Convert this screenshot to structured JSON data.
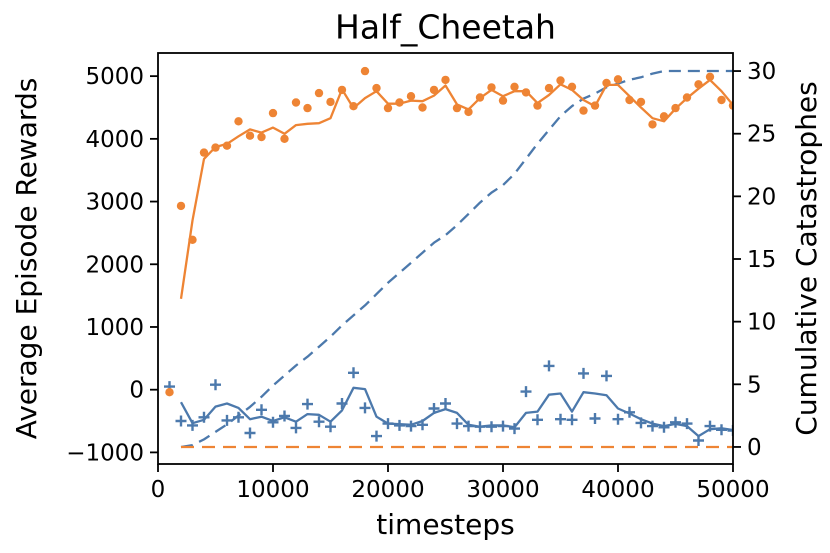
{
  "colors": {
    "orange": "#ee8434",
    "blue": "#4c79ac",
    "axis": "#000000",
    "background": "#ffffff"
  },
  "chart_data": {
    "type": "line",
    "title": "Half_Cheetah",
    "xlabel": "timesteps",
    "ylabel_left": "Average Episode Rewards",
    "ylabel_right": "Cumulative Catastrophes",
    "grid": false,
    "legend": null,
    "xlim": [
      0,
      50000
    ],
    "ylim_left": [
      -1185,
      5369
    ],
    "ylim_right": [
      -1.36,
      31.44
    ],
    "x_ticks": {
      "values": [
        0,
        10000,
        20000,
        30000,
        40000,
        50000
      ],
      "labels": [
        "0",
        "10000",
        "20000",
        "30000",
        "40000",
        "50000"
      ]
    },
    "y_ticks_left": {
      "values": [
        -1000,
        0,
        1000,
        2000,
        3000,
        4000,
        5000
      ],
      "labels": [
        "−1000",
        "0",
        "1000",
        "2000",
        "3000",
        "4000",
        "5000"
      ]
    },
    "y_ticks_right": {
      "values": [
        0,
        5,
        10,
        15,
        20,
        25,
        30
      ],
      "labels": [
        "0",
        "5",
        "10",
        "15",
        "20",
        "25",
        "30"
      ]
    },
    "series": [
      {
        "name": "blue-catastrophes-dashed",
        "type": "line",
        "axis": "right",
        "color": "blue",
        "dash": [
          12,
          7
        ],
        "x": [
          2000,
          3000,
          4000,
          5000,
          6000,
          7000,
          8000,
          9000,
          10000,
          11000,
          12000,
          13000,
          14000,
          15000,
          16000,
          17000,
          18000,
          19000,
          20000,
          21000,
          22000,
          23000,
          24000,
          25000,
          26000,
          27000,
          28000,
          29000,
          30000,
          31000,
          32000,
          33000,
          34000,
          35000,
          36000,
          37000,
          38000,
          39000,
          40000,
          41000,
          42000,
          43000,
          44000,
          45000,
          46000,
          47000,
          48000,
          49000,
          50000
        ],
        "y": [
          0,
          0.15,
          0.6,
          1.2,
          1.8,
          2.5,
          3.2,
          4.0,
          4.9,
          5.7,
          6.5,
          7.2,
          8.0,
          8.8,
          9.7,
          10.5,
          11.3,
          12.2,
          13.1,
          13.9,
          14.7,
          15.5,
          16.3,
          16.9,
          17.7,
          18.6,
          19.5,
          20.3,
          20.9,
          21.8,
          23.0,
          24.2,
          25.3,
          26.4,
          27.2,
          27.8,
          28.2,
          28.7,
          29.0,
          29.3,
          29.5,
          29.8,
          30,
          30,
          30,
          30,
          30,
          30,
          30
        ]
      },
      {
        "name": "orange-catastrophes-dashed",
        "type": "line",
        "axis": "right",
        "color": "orange",
        "dash": [
          13,
          8
        ],
        "x": [
          2000,
          50000
        ],
        "y": [
          0,
          0
        ]
      },
      {
        "name": "blue-rewards-trend",
        "type": "line",
        "axis": "left",
        "color": "blue",
        "dash": null,
        "x": [
          2000,
          3000,
          4000,
          5000,
          6000,
          7000,
          8000,
          9000,
          10000,
          11000,
          12000,
          13000,
          14000,
          15000,
          16000,
          17000,
          18000,
          19000,
          20000,
          21000,
          22000,
          23000,
          24000,
          25000,
          26000,
          27000,
          28000,
          29000,
          30000,
          31000,
          32000,
          33000,
          34000,
          35000,
          36000,
          37000,
          38000,
          39000,
          40000,
          41000,
          42000,
          43000,
          44000,
          45000,
          46000,
          47000,
          48000,
          49000,
          50000
        ],
        "y": [
          -200,
          -535,
          -480,
          -270,
          -220,
          -290,
          -470,
          -430,
          -500,
          -440,
          -510,
          -390,
          -400,
          -510,
          -330,
          30,
          10,
          -430,
          -540,
          -550,
          -560,
          -500,
          -370,
          -310,
          -370,
          -560,
          -590,
          -570,
          -570,
          -600,
          -370,
          -350,
          -80,
          -60,
          -350,
          -40,
          -60,
          -90,
          -300,
          -380,
          -470,
          -540,
          -580,
          -545,
          -580,
          -740,
          -630,
          -615,
          -645
        ]
      },
      {
        "name": "orange-rewards-trend",
        "type": "line",
        "axis": "left",
        "color": "orange",
        "dash": null,
        "x": [
          2000,
          3000,
          4000,
          5000,
          6000,
          7000,
          8000,
          9000,
          10000,
          11000,
          12000,
          13000,
          14000,
          15000,
          16000,
          17000,
          18000,
          19000,
          20000,
          21000,
          22000,
          23000,
          24000,
          25000,
          26000,
          27000,
          28000,
          29000,
          30000,
          31000,
          32000,
          33000,
          34000,
          35000,
          36000,
          37000,
          38000,
          39000,
          40000,
          41000,
          42000,
          43000,
          44000,
          45000,
          46000,
          47000,
          48000,
          49000,
          50000
        ],
        "y": [
          1450,
          2700,
          3680,
          3870,
          3920,
          4040,
          4150,
          4100,
          4180,
          4080,
          4220,
          4240,
          4250,
          4330,
          4790,
          4490,
          4650,
          4760,
          4560,
          4560,
          4610,
          4600,
          4690,
          4850,
          4550,
          4470,
          4650,
          4780,
          4680,
          4760,
          4760,
          4570,
          4700,
          4870,
          4780,
          4620,
          4520,
          4860,
          4860,
          4680,
          4500,
          4330,
          4280,
          4480,
          4650,
          4800,
          4940,
          4760,
          4540
        ]
      },
      {
        "name": "blue-rewards-scatter",
        "type": "scatter",
        "marker": "plus",
        "axis": "left",
        "color": "blue",
        "x": [
          1000,
          2000,
          3000,
          4000,
          5000,
          6000,
          7000,
          8000,
          9000,
          10000,
          11000,
          12000,
          13000,
          14000,
          15000,
          16000,
          17000,
          18000,
          19000,
          20000,
          21000,
          22000,
          23000,
          24000,
          25000,
          26000,
          27000,
          28000,
          29000,
          30000,
          31000,
          32000,
          33000,
          34000,
          35000,
          36000,
          37000,
          38000,
          39000,
          40000,
          41000,
          42000,
          43000,
          44000,
          45000,
          46000,
          47000,
          48000,
          49000,
          50000
        ],
        "y": [
          50,
          -500,
          -570,
          -440,
          80,
          -490,
          -440,
          -690,
          -320,
          -520,
          -420,
          -610,
          -230,
          -510,
          -590,
          -220,
          270,
          -290,
          -740,
          -540,
          -570,
          -580,
          -560,
          -300,
          -220,
          -540,
          -580,
          -590,
          -590,
          -580,
          -620,
          -30,
          -480,
          380,
          -470,
          -480,
          260,
          -460,
          220,
          -470,
          -360,
          -530,
          -580,
          -600,
          -520,
          -540,
          -810,
          -580,
          -640,
          -650
        ]
      },
      {
        "name": "orange-rewards-scatter",
        "type": "scatter",
        "marker": "dot",
        "axis": "left",
        "color": "orange",
        "x": [
          1000,
          2000,
          3000,
          4000,
          5000,
          6000,
          7000,
          8000,
          9000,
          10000,
          11000,
          12000,
          13000,
          14000,
          15000,
          16000,
          17000,
          18000,
          19000,
          20000,
          21000,
          22000,
          23000,
          24000,
          25000,
          26000,
          27000,
          28000,
          29000,
          30000,
          31000,
          32000,
          33000,
          34000,
          35000,
          36000,
          37000,
          38000,
          39000,
          40000,
          41000,
          42000,
          43000,
          44000,
          45000,
          46000,
          47000,
          48000,
          49000,
          50000
        ],
        "y": [
          -40,
          2930,
          2390,
          3780,
          3860,
          3890,
          4280,
          4050,
          4030,
          4410,
          4000,
          4580,
          4490,
          4730,
          4590,
          4780,
          4520,
          5080,
          4810,
          4490,
          4580,
          4680,
          4500,
          4780,
          4940,
          4490,
          4430,
          4660,
          4820,
          4610,
          4830,
          4740,
          4530,
          4810,
          4930,
          4830,
          4450,
          4530,
          4890,
          4950,
          4620,
          4590,
          4230,
          4360,
          4490,
          4660,
          4870,
          4990,
          4620,
          4530
        ]
      }
    ]
  }
}
